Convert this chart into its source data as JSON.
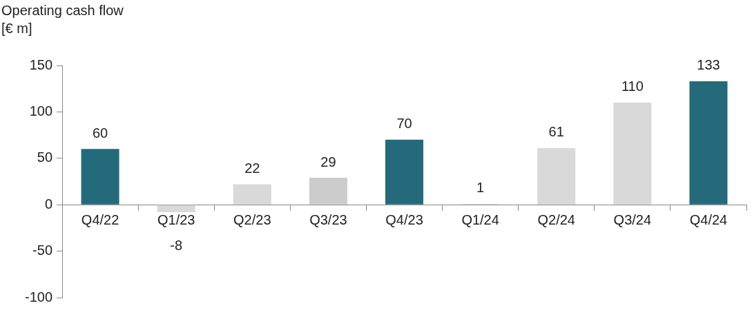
{
  "chart_data": {
    "type": "bar",
    "title": "Operating cash flow",
    "ylabel": "[€ m]",
    "categories": [
      "Q4/22",
      "Q1/23",
      "Q2/23",
      "Q3/23",
      "Q4/23",
      "Q1/24",
      "Q2/24",
      "Q3/24",
      "Q4/24"
    ],
    "values": [
      60,
      -8,
      22,
      29,
      70,
      1,
      61,
      110,
      133
    ],
    "colors": [
      "#256a7a",
      "#d9d9d9",
      "#d9d9d9",
      "#cccccc",
      "#256a7a",
      "#d9d9d9",
      "#d9d9d9",
      "#d9d9d9",
      "#256a7a"
    ],
    "ylim": [
      -100,
      150
    ],
    "yticks": [
      -100,
      -50,
      0,
      50,
      100,
      150
    ],
    "grid": false,
    "data_labels": true
  }
}
